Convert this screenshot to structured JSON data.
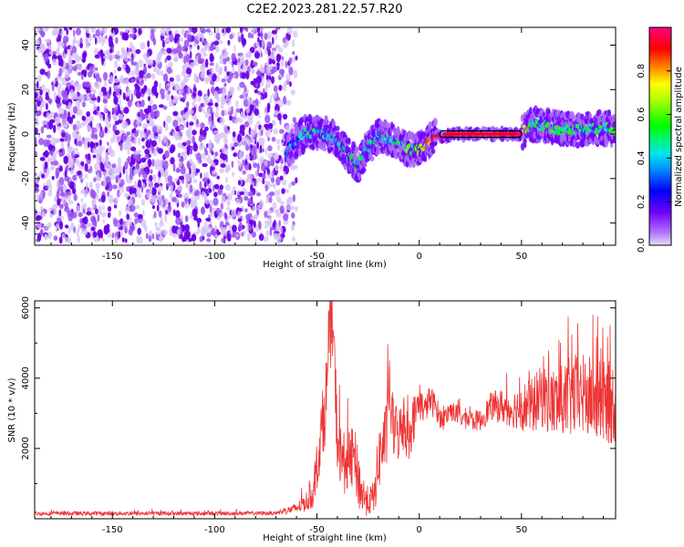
{
  "page_title": "C2E2.2023.281.22.57.R20",
  "chart_data": [
    {
      "type": "heatmap",
      "title": "C2E2.2023.281.22.57.R20",
      "xlabel": "Height of straight line (km)",
      "ylabel": "Frequency (Hz)",
      "xlim": [
        -188,
        96
      ],
      "ylim": [
        -50,
        48
      ],
      "xticks": [
        -150,
        -100,
        -50,
        0,
        50
      ],
      "yticks": [
        -40,
        -20,
        0,
        20,
        40
      ],
      "grid": false,
      "noise_region": {
        "x": [
          -188,
          -60
        ],
        "y": [
          -48,
          48
        ],
        "dominant_amplitude": 0.08
      },
      "ridge": {
        "x": [
          -65,
          -60,
          -55,
          -50,
          -45,
          -40,
          -35,
          -30,
          -25,
          -20,
          -15,
          -10,
          -5,
          0,
          5,
          8,
          10,
          12,
          15,
          20,
          30,
          40,
          50,
          55,
          60,
          70,
          80,
          90,
          96
        ],
        "frequency": [
          -8,
          -3,
          1,
          0,
          0,
          -3,
          -9,
          -14,
          -6,
          -1,
          -2,
          -4,
          -7,
          -7,
          -3,
          -1,
          -1,
          -2,
          0,
          0,
          0,
          0,
          0,
          4,
          4,
          2,
          2,
          3,
          2
        ],
        "amplitude": [
          0.3,
          0.35,
          0.45,
          0.4,
          0.4,
          0.38,
          0.42,
          0.45,
          0.45,
          0.4,
          0.42,
          0.5,
          0.55,
          0.6,
          0.8,
          0.95,
          1.0,
          1.0,
          1.0,
          1.0,
          1.0,
          1.0,
          1.0,
          0.45,
          0.5,
          0.5,
          0.45,
          0.5,
          0.5
        ]
      },
      "colorbar": {
        "label": "Normalized spectral amplitude",
        "ticks": [
          0.0,
          0.2,
          0.4,
          0.6,
          0.8
        ],
        "range": [
          0,
          1
        ],
        "colors": [
          "#e8dcf5",
          "#7000ff",
          "#0000ff",
          "#00e0ff",
          "#00ff00",
          "#ffff00",
          "#ff0000",
          "#ff0080"
        ]
      }
    },
    {
      "type": "line",
      "xlabel": "Height of straight line (km)",
      "ylabel": "SNR (10 * v/v)",
      "xlim": [
        -188,
        96
      ],
      "ylim": [
        0,
        6200
      ],
      "xticks": [
        -150,
        -100,
        -50,
        0,
        50
      ],
      "yticks": [
        2000,
        4000,
        6000
      ],
      "grid": false,
      "series": [
        {
          "color": "#ee3333",
          "x": [
            -188,
            -150,
            -100,
            -70,
            -60,
            -55,
            -52,
            -50,
            -48,
            -46,
            -45,
            -44,
            -43,
            -42,
            -40,
            -38,
            -35,
            -32,
            -30,
            -28,
            -25,
            -22,
            -20,
            -18,
            -16,
            -15,
            -13,
            -10,
            -8,
            -5,
            -3,
            0,
            3,
            5,
            8,
            10,
            12,
            15,
            20,
            25,
            30,
            35,
            40,
            45,
            50,
            55,
            60,
            65,
            70,
            75,
            80,
            85,
            90,
            96
          ],
          "y": [
            150,
            150,
            150,
            160,
            300,
            500,
            700,
            1400,
            2400,
            3200,
            3900,
            4800,
            6000,
            5200,
            2200,
            1700,
            1500,
            1800,
            1200,
            700,
            500,
            600,
            1600,
            2100,
            2300,
            3900,
            2600,
            2400,
            2700,
            2300,
            2800,
            3300,
            3100,
            3400,
            3200,
            2900,
            2800,
            3100,
            2900,
            2800,
            2800,
            3200,
            3200,
            3100,
            3200,
            3200,
            3500,
            3300,
            3300,
            3500,
            3500,
            3400,
            3300,
            3300
          ],
          "envelope": [
            60,
            60,
            60,
            60,
            150,
            300,
            400,
            600,
            900,
            1100,
            1200,
            1300,
            1400,
            1300,
            900,
            900,
            900,
            900,
            900,
            700,
            400,
            500,
            900,
            1000,
            1000,
            1000,
            900,
            800,
            800,
            700,
            700,
            500,
            400,
            400,
            400,
            300,
            300,
            300,
            300,
            300,
            300,
            400,
            500,
            500,
            700,
            800,
            900,
            1000,
            1100,
            1200,
            1200,
            1200,
            1200,
            1200
          ]
        }
      ]
    }
  ]
}
